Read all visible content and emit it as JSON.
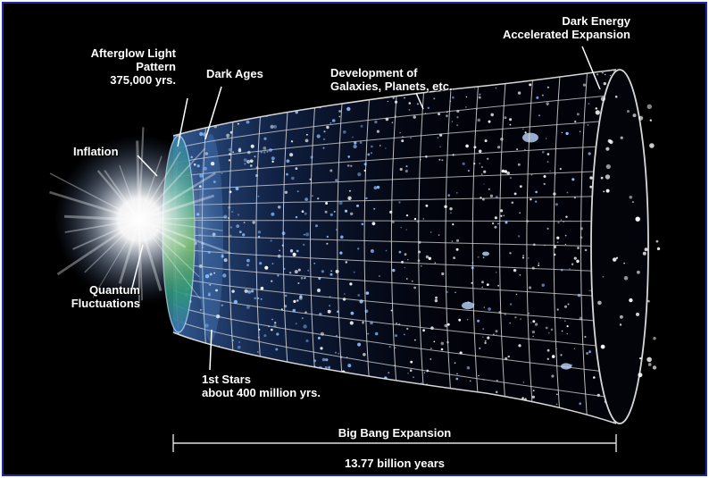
{
  "labels": {
    "afterglow": [
      "Afterglow Light",
      "Pattern",
      "375,000 yrs."
    ],
    "inflation": "Inflation",
    "quantum": [
      "Quantum",
      "Fluctuations"
    ],
    "dark_ages": "Dark Ages",
    "development": [
      "Development of",
      "Galaxies, Planets, etc."
    ],
    "dark_energy": [
      "Dark Energy",
      "Accelerated Expansion"
    ],
    "first_stars": [
      "1st Stars",
      "about 400 million yrs."
    ],
    "expansion": "Big Bang Expansion",
    "age": "13.77 billion years"
  },
  "colors": {
    "frame_border": "#1a2aa8",
    "background": "#000000",
    "grid": "#d8d8d8",
    "cmb": "#2fa06a"
  }
}
